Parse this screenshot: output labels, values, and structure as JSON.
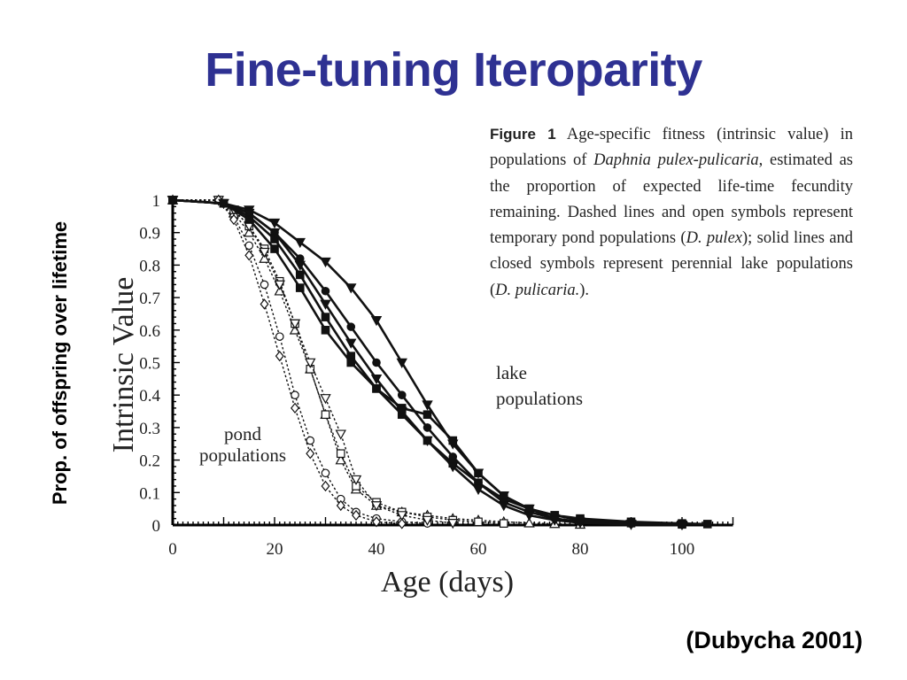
{
  "slide": {
    "title": "Fine-tuning Iteroparity",
    "side_label": "Prop. of offspring over lifetime",
    "citation": "(Dubycha 2001)"
  },
  "caption": {
    "label": "Figure 1",
    "p1": " Age-specific fitness (intrinsic value) in populations of ",
    "species": "Daphnia pulex-pulicaria",
    "p2": ", estimated as the proportion of expected life-time fecundity remaining. Dashed lines and open symbols represent temporary pond populations (",
    "pulex": "D. pulex",
    "p3": "); solid lines and closed symbols represent perennial lake populations (",
    "pulicaria": "D. pulicaria.",
    "p4": ")."
  },
  "chart_data": {
    "type": "line",
    "title": "",
    "xlabel": "Age (days)",
    "ylabel": "Intrinsic Value",
    "xlim": [
      0,
      110
    ],
    "ylim": [
      0,
      1
    ],
    "xticks": [
      "0",
      "20",
      "40",
      "60",
      "80",
      "100"
    ],
    "yticks": [
      "0",
      "0.1",
      "0.2",
      "0.3",
      "0.4",
      "0.5",
      "0.6",
      "0.7",
      "0.8",
      "0.9",
      "1"
    ],
    "annotations": [
      {
        "text": "lake",
        "text2": "populations"
      },
      {
        "text": "pond",
        "text2": "populations"
      }
    ],
    "series": [
      {
        "group": "pond",
        "marker": "triangle",
        "x": [
          0,
          9,
          12,
          15,
          18,
          21,
          24,
          27,
          30,
          33,
          36,
          40,
          45,
          50,
          55,
          60,
          65,
          70,
          75,
          80
        ],
        "y": [
          1,
          1,
          0.96,
          0.9,
          0.82,
          0.72,
          0.6,
          0.48,
          0.34,
          0.2,
          0.11,
          0.06,
          0.04,
          0.03,
          0.02,
          0.015,
          0.01,
          0.006,
          0.004,
          0.002
        ]
      },
      {
        "group": "pond",
        "marker": "circle",
        "x": [
          0,
          9,
          12,
          15,
          18,
          21,
          24,
          27,
          30,
          33,
          36,
          40,
          45,
          50
        ],
        "y": [
          1,
          1,
          0.95,
          0.86,
          0.74,
          0.58,
          0.4,
          0.26,
          0.16,
          0.08,
          0.04,
          0.02,
          0.01,
          0.005
        ]
      },
      {
        "group": "pond",
        "marker": "square",
        "x": [
          0,
          9,
          12,
          15,
          18,
          21,
          24,
          27,
          30,
          33,
          36,
          40,
          45,
          50,
          55,
          60,
          65
        ],
        "y": [
          1,
          1,
          0.97,
          0.92,
          0.85,
          0.75,
          0.62,
          0.48,
          0.34,
          0.22,
          0.12,
          0.07,
          0.04,
          0.025,
          0.015,
          0.01,
          0.005
        ]
      },
      {
        "group": "pond",
        "marker": "triangle-down",
        "x": [
          0,
          9,
          12,
          15,
          18,
          21,
          24,
          27,
          30,
          33,
          36,
          40,
          45,
          50,
          55
        ],
        "y": [
          1,
          1,
          0.97,
          0.92,
          0.84,
          0.74,
          0.62,
          0.5,
          0.39,
          0.28,
          0.14,
          0.06,
          0.03,
          0.015,
          0.006
        ]
      },
      {
        "group": "pond",
        "marker": "diamond",
        "x": [
          0,
          9,
          12,
          15,
          18,
          21,
          24,
          27,
          30,
          33,
          36,
          40,
          45
        ],
        "y": [
          1,
          1,
          0.94,
          0.83,
          0.68,
          0.52,
          0.36,
          0.22,
          0.12,
          0.06,
          0.03,
          0.01,
          0.004
        ]
      },
      {
        "group": "lake",
        "marker": "triangle-down",
        "x": [
          0,
          10,
          15,
          20,
          25,
          30,
          35,
          40,
          45,
          50,
          55,
          60,
          65,
          70,
          75,
          80,
          90,
          100
        ],
        "y": [
          1,
          0.99,
          0.97,
          0.93,
          0.87,
          0.81,
          0.73,
          0.63,
          0.5,
          0.37,
          0.25,
          0.16,
          0.09,
          0.05,
          0.02,
          0.01,
          0.003,
          0.001
        ]
      },
      {
        "group": "lake",
        "marker": "circle",
        "x": [
          0,
          10,
          15,
          20,
          25,
          30,
          35,
          40,
          45,
          50,
          55,
          60,
          65,
          70,
          75,
          80,
          90,
          100
        ],
        "y": [
          1,
          0.99,
          0.96,
          0.9,
          0.82,
          0.72,
          0.61,
          0.5,
          0.4,
          0.3,
          0.21,
          0.13,
          0.07,
          0.04,
          0.02,
          0.01,
          0.004,
          0.001
        ]
      },
      {
        "group": "lake",
        "marker": "square",
        "x": [
          0,
          10,
          15,
          20,
          25,
          30,
          35,
          40,
          45,
          50,
          55,
          60,
          65,
          70,
          75,
          80,
          90,
          100,
          105
        ],
        "y": [
          1,
          0.99,
          0.95,
          0.88,
          0.77,
          0.64,
          0.52,
          0.42,
          0.34,
          0.26,
          0.19,
          0.13,
          0.08,
          0.05,
          0.03,
          0.02,
          0.01,
          0.005,
          0.003
        ]
      },
      {
        "group": "lake",
        "marker": "square",
        "x": [
          0,
          10,
          15,
          20,
          25,
          30,
          35,
          40,
          45,
          50,
          55,
          60,
          65,
          70,
          75,
          80,
          90,
          100
        ],
        "y": [
          1,
          0.99,
          0.94,
          0.85,
          0.73,
          0.6,
          0.5,
          0.42,
          0.36,
          0.34,
          0.26,
          0.16,
          0.09,
          0.05,
          0.03,
          0.015,
          0.006,
          0.002
        ]
      },
      {
        "group": "lake",
        "marker": "triangle-down",
        "x": [
          0,
          10,
          15,
          20,
          25,
          30,
          35,
          40,
          45,
          50,
          55,
          60,
          65,
          70,
          75,
          80,
          90
        ],
        "y": [
          1,
          0.99,
          0.96,
          0.9,
          0.8,
          0.68,
          0.56,
          0.45,
          0.35,
          0.26,
          0.18,
          0.11,
          0.06,
          0.03,
          0.015,
          0.007,
          0.002
        ]
      }
    ]
  }
}
